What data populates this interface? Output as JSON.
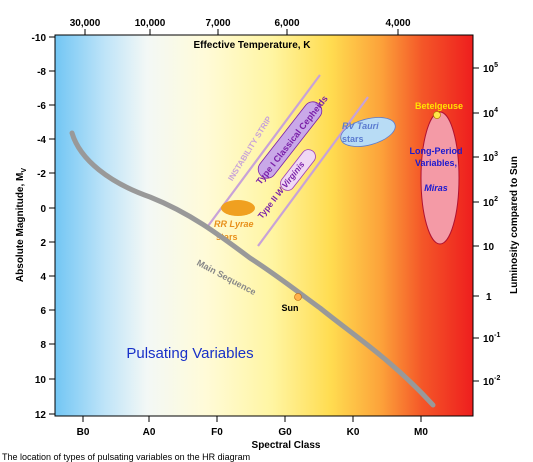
{
  "top_axis": {
    "title": "Effective Temperature, K",
    "ticks": [
      "30,000",
      "10,000",
      "7,000",
      "6,000",
      "4,000"
    ]
  },
  "bottom_axis": {
    "title": "Spectral Class",
    "ticks": [
      "B0",
      "A0",
      "F0",
      "G0",
      "K0",
      "M0"
    ]
  },
  "left_axis": {
    "title": "Absolute Magnitude, M",
    "title_subscript": "V",
    "ticks": [
      "-10",
      "-8",
      "-6",
      "-4",
      "-2",
      "0",
      "2",
      "4",
      "6",
      "8",
      "10",
      "12"
    ]
  },
  "right_axis": {
    "title": "Luminosity compared to Sun",
    "ticks": [
      {
        "base": "10",
        "exp": "5"
      },
      {
        "base": "10",
        "exp": "4"
      },
      {
        "base": "10",
        "exp": "3"
      },
      {
        "base": "10",
        "exp": "2"
      },
      {
        "base": "10",
        "exp": ""
      },
      {
        "base": "1",
        "exp": ""
      },
      {
        "base": "10",
        "exp": "-1"
      },
      {
        "base": "10",
        "exp": "-2"
      }
    ]
  },
  "labels": {
    "main_sequence": "Main Sequence",
    "sun": "Sun",
    "instability_strip": "INSTABILITY STRIP",
    "classical_cepheids": "Type I Classical Cepheids",
    "w_virginis_prefix": "Type II",
    "w_virginis": "W Virginis",
    "rr_lyrae_1": "RR Lyrae",
    "rr_lyrae_2": "stars",
    "rv_tauri_1": "RV Tauri",
    "rv_tauri_2": "stars",
    "betelgeuse": "Betelgeuse",
    "lpv_1": "Long-Period",
    "lpv_2": "Variables,",
    "lpv_3": "Miras",
    "pulsating_variables": "Pulsating Variables"
  },
  "caption": "The location of types of pulsating variables on the HR diagram",
  "colors": {
    "main_sequence": "#999999",
    "instability_strip": "#c8a2d8",
    "cepheid_fill": "#c9a8e8",
    "purple_text": "#7a1fa8",
    "w_virginis_fill": "#f0d8f4",
    "rr_lyrae": "#f0a020",
    "rv_tauri_fill": "#b8dcf5",
    "rv_tauri_text": "#5a7bd0",
    "lpv_fill": "#f49aa6",
    "lpv_stroke": "#b01030",
    "lpv_text": "#1a1ad0",
    "betelgeuse_text": "#ffe400",
    "betelgeuse_dot": "#ffe84a",
    "sun_dot": "#ffb24a",
    "pulsating_text": "#1830c8"
  }
}
